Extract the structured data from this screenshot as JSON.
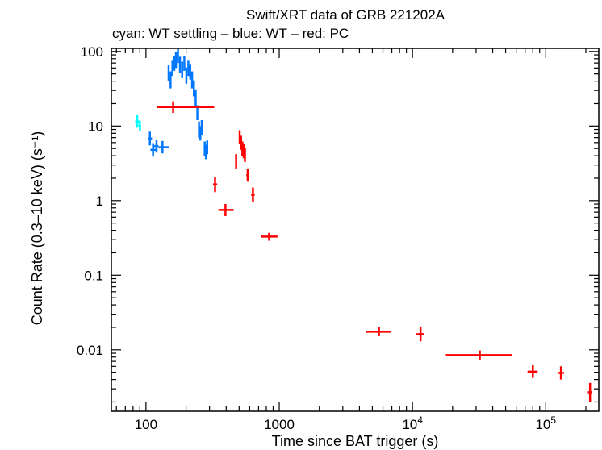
{
  "chart_data": {
    "type": "scatter",
    "title": "Swift/XRT data of GRB 221202A",
    "subtitle": "cyan: WT settling – blue: WT – red: PC",
    "xlabel": "Time since BAT trigger (s)",
    "ylabel": "Count Rate (0.3–10 keV) (s⁻¹)",
    "xscale": "log",
    "yscale": "log",
    "xlim": [
      55,
      250000
    ],
    "ylim": [
      0.0015,
      110
    ],
    "grid": false,
    "x_ticks": [
      {
        "value": 100,
        "label": "100"
      },
      {
        "value": 1000,
        "label": "1000"
      },
      {
        "value": 10000,
        "label": "10",
        "sup": "4"
      },
      {
        "value": 100000,
        "label": "10",
        "sup": "5"
      }
    ],
    "y_ticks": [
      {
        "value": 100,
        "label": "100"
      },
      {
        "value": 10,
        "label": "10"
      },
      {
        "value": 1,
        "label": "1"
      },
      {
        "value": 0.1,
        "label": "0.1"
      },
      {
        "value": 0.01,
        "label": "0.01"
      }
    ],
    "series": [
      {
        "name": "WT settling",
        "color": "#00ffff",
        "points": [
          {
            "x": 86,
            "y": 11.5,
            "xerr": [
              83,
              89
            ],
            "yerr": [
              9.5,
              14
            ]
          },
          {
            "x": 90,
            "y": 10.0,
            "xerr": [
              88,
              92
            ],
            "yerr": [
              8.5,
              11.8
            ]
          }
        ]
      },
      {
        "name": "WT",
        "color": "#0077ff",
        "points": [
          {
            "x": 107,
            "y": 6.8,
            "xerr": [
              103,
              111
            ],
            "yerr": [
              5.5,
              8.4
            ]
          },
          {
            "x": 113,
            "y": 4.8,
            "xerr": [
              108,
              119
            ],
            "yerr": [
              3.9,
              5.9
            ]
          },
          {
            "x": 120,
            "y": 5.4,
            "xerr": [
              115,
              124
            ],
            "yerr": [
              4.4,
              6.6
            ]
          },
          {
            "x": 133,
            "y": 5.2,
            "xerr": [
              124,
              149
            ],
            "yerr": [
              4.3,
              6.3
            ]
          },
          {
            "x": 148,
            "y": 52,
            "xerr": [
              146,
              150
            ],
            "yerr": [
              40,
              66
            ]
          },
          {
            "x": 153,
            "y": 42,
            "xerr": [
              151,
              155
            ],
            "yerr": [
              32,
              54
            ]
          },
          {
            "x": 158,
            "y": 60,
            "xerr": [
              156,
              160
            ],
            "yerr": [
              47,
              75
            ]
          },
          {
            "x": 163,
            "y": 70,
            "xerr": [
              161,
              165
            ],
            "yerr": [
              55,
              88
            ]
          },
          {
            "x": 168,
            "y": 78,
            "xerr": [
              166,
              170
            ],
            "yerr": [
              60,
              98
            ]
          },
          {
            "x": 174,
            "y": 88,
            "xerr": [
              172,
              176
            ],
            "yerr": [
              70,
              108
            ]
          },
          {
            "x": 180,
            "y": 68,
            "xerr": [
              178,
              182
            ],
            "yerr": [
              52,
              85
            ]
          },
          {
            "x": 187,
            "y": 58,
            "xerr": [
              185,
              189
            ],
            "yerr": [
              44,
              73
            ]
          },
          {
            "x": 194,
            "y": 70,
            "xerr": [
              192,
              196
            ],
            "yerr": [
              55,
              87
            ]
          },
          {
            "x": 201,
            "y": 48,
            "xerr": [
              199,
              203
            ],
            "yerr": [
              37,
              61
            ]
          },
          {
            "x": 208,
            "y": 60,
            "xerr": [
              206,
              210
            ],
            "yerr": [
              47,
              75
            ]
          },
          {
            "x": 215,
            "y": 54,
            "xerr": [
              213,
              217
            ],
            "yerr": [
              42,
              68
            ]
          },
          {
            "x": 222,
            "y": 42,
            "xerr": [
              220,
              224
            ],
            "yerr": [
              32,
              54
            ]
          },
          {
            "x": 229,
            "y": 32,
            "xerr": [
              227,
              231
            ],
            "yerr": [
              25,
              41
            ]
          },
          {
            "x": 236,
            "y": 24,
            "xerr": [
              234,
              238
            ],
            "yerr": [
              18,
              31
            ]
          },
          {
            "x": 243,
            "y": 15,
            "xerr": [
              241,
              245
            ],
            "yerr": [
              12,
              19
            ]
          },
          {
            "x": 250,
            "y": 9,
            "xerr": [
              248,
              252
            ],
            "yerr": [
              7,
              11.5
            ]
          },
          {
            "x": 256,
            "y": 8,
            "xerr": [
              254,
              258
            ],
            "yerr": [
              6.4,
              10
            ]
          },
          {
            "x": 262,
            "y": 9.5,
            "xerr": [
              260,
              264
            ],
            "yerr": [
              7.5,
              12
            ]
          },
          {
            "x": 276,
            "y": 5,
            "xerr": [
              273,
              279
            ],
            "yerr": [
              4,
              6.2
            ]
          },
          {
            "x": 282,
            "y": 4.5,
            "xerr": [
              279,
              285
            ],
            "yerr": [
              3.6,
              5.6
            ]
          },
          {
            "x": 288,
            "y": 5.2,
            "xerr": [
              285,
              291
            ],
            "yerr": [
              4.2,
              6.4
            ]
          }
        ]
      },
      {
        "name": "PC",
        "color": "#ff0000",
        "points": [
          {
            "x": 160,
            "y": 18,
            "xerr": [
              120,
              325
            ],
            "yerr": [
              15,
              21.5
            ]
          },
          {
            "x": 330,
            "y": 1.65,
            "xerr": [
              318,
              342
            ],
            "yerr": [
              1.3,
              2.1
            ]
          },
          {
            "x": 395,
            "y": 0.75,
            "xerr": [
              350,
              455
            ],
            "yerr": [
              0.62,
              0.9
            ]
          },
          {
            "x": 475,
            "y": 3.4,
            "xerr": [
              468,
              482
            ],
            "yerr": [
              2.7,
              4.2
            ]
          },
          {
            "x": 505,
            "y": 7.2,
            "xerr": [
              500,
              510
            ],
            "yerr": [
              5.8,
              8.8
            ]
          },
          {
            "x": 517,
            "y": 6.0,
            "xerr": [
              512,
              522
            ],
            "yerr": [
              4.8,
              7.4
            ]
          },
          {
            "x": 529,
            "y": 5.0,
            "xerr": [
              524,
              534
            ],
            "yerr": [
              4.0,
              6.2
            ]
          },
          {
            "x": 541,
            "y": 4.6,
            "xerr": [
              536,
              546
            ],
            "yerr": [
              3.7,
              5.7
            ]
          },
          {
            "x": 553,
            "y": 4.1,
            "xerr": [
              548,
              558
            ],
            "yerr": [
              3.3,
              5.1
            ]
          },
          {
            "x": 580,
            "y": 2.2,
            "xerr": [
              566,
              594
            ],
            "yerr": [
              1.8,
              2.7
            ]
          },
          {
            "x": 635,
            "y": 1.2,
            "xerr": [
              615,
              655
            ],
            "yerr": [
              0.95,
              1.5
            ]
          },
          {
            "x": 840,
            "y": 0.33,
            "xerr": [
              730,
              970
            ],
            "yerr": [
              0.29,
              0.37
            ]
          },
          {
            "x": 5600,
            "y": 0.0175,
            "xerr": [
              4500,
              6900
            ],
            "yerr": [
              0.0152,
              0.0202
            ]
          },
          {
            "x": 11500,
            "y": 0.0162,
            "xerr": [
              10700,
              12300
            ],
            "yerr": [
              0.013,
              0.02
            ]
          },
          {
            "x": 32000,
            "y": 0.0085,
            "xerr": [
              17800,
              56000
            ],
            "yerr": [
              0.0074,
              0.0098
            ]
          },
          {
            "x": 80000,
            "y": 0.0051,
            "xerr": [
              73000,
              87000
            ],
            "yerr": [
              0.0042,
              0.0062
            ]
          },
          {
            "x": 130000,
            "y": 0.0049,
            "xerr": [
              123000,
              137000
            ],
            "yerr": [
              0.004,
              0.006
            ]
          },
          {
            "x": 215000,
            "y": 0.0027,
            "xerr": [
              207000,
              223000
            ],
            "yerr": [
              0.002,
              0.0036
            ]
          }
        ]
      }
    ]
  }
}
